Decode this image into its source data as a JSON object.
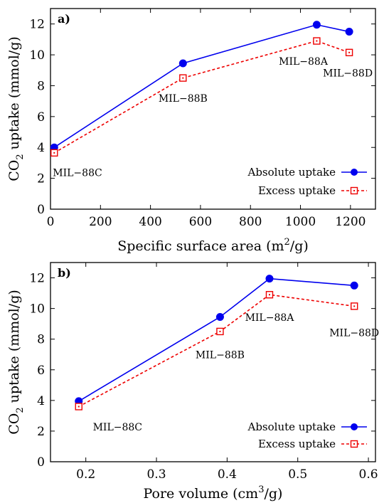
{
  "chart_data": [
    {
      "type": "line",
      "panel_label": "a)",
      "xlabel": "Specific surface area (m",
      "xlabel_sup": "2",
      "xlabel_tail": "/g)",
      "ylabel_pre": "CO",
      "ylabel_sub": "2",
      "ylabel_post": " uptake (mmol/g)",
      "xlim": [
        0,
        1300
      ],
      "ylim": [
        0,
        13
      ],
      "xticks": [
        0,
        200,
        400,
        600,
        800,
        1000,
        1200
      ],
      "yticks": [
        0,
        2,
        4,
        6,
        8,
        10,
        12
      ],
      "grid": false,
      "legend_position": "bottom-right",
      "series": [
        {
          "name": "Absolute uptake",
          "color": "#0000ee",
          "marker": "filled-circle",
          "line": "solid",
          "points": [
            [
              15,
              4.0
            ],
            [
              530,
              9.45
            ],
            [
              1065,
              11.95
            ],
            [
              1195,
              11.5
            ]
          ]
        },
        {
          "name": "Excess uptake",
          "color": "#ee0000",
          "marker": "open-square",
          "line": "dashed",
          "points": [
            [
              15,
              3.65
            ],
            [
              530,
              8.5
            ],
            [
              1065,
              10.9
            ],
            [
              1195,
              10.15
            ]
          ]
        }
      ],
      "annotations": [
        {
          "text": "MIL−88C",
          "x": 15,
          "y": 2.15
        },
        {
          "text": "MIL−88B",
          "x": 530,
          "y": 6.95
        },
        {
          "text": "MIL−88A",
          "x": 1000,
          "y": 9.35
        },
        {
          "text": "MIL−88D",
          "x": 1195,
          "y": 8.6
        }
      ]
    },
    {
      "type": "line",
      "panel_label": "b)",
      "xlabel": "Pore volume (cm",
      "xlabel_sup": "3",
      "xlabel_tail": "/g)",
      "ylabel_pre": "CO",
      "ylabel_sub": "2",
      "ylabel_post": " uptake (mmol/g)",
      "xlim": [
        0.15,
        0.61
      ],
      "ylim": [
        0,
        13
      ],
      "xticks": [
        0.2,
        0.3,
        0.4,
        0.5,
        0.6
      ],
      "yticks": [
        0,
        2,
        4,
        6,
        8,
        10,
        12
      ],
      "grid": false,
      "legend_position": "bottom-right",
      "series": [
        {
          "name": "Absolute uptake",
          "color": "#0000ee",
          "marker": "filled-circle",
          "line": "solid",
          "points": [
            [
              0.19,
              3.95
            ],
            [
              0.39,
              9.45
            ],
            [
              0.46,
              11.95
            ],
            [
              0.58,
              11.5
            ]
          ]
        },
        {
          "name": "Excess uptake",
          "color": "#ee0000",
          "marker": "open-square",
          "line": "dashed",
          "points": [
            [
              0.19,
              3.6
            ],
            [
              0.39,
              8.5
            ],
            [
              0.46,
              10.9
            ],
            [
              0.58,
              10.15
            ]
          ]
        }
      ],
      "annotations": [
        {
          "text": "MIL−88C",
          "x": 0.21,
          "y": 2.05
        },
        {
          "text": "MIL−88B",
          "x": 0.39,
          "y": 6.75
        },
        {
          "text": "MIL−88A",
          "x": 0.46,
          "y": 9.2
        },
        {
          "text": "MIL−88D",
          "x": 0.58,
          "y": 8.2
        }
      ]
    }
  ]
}
